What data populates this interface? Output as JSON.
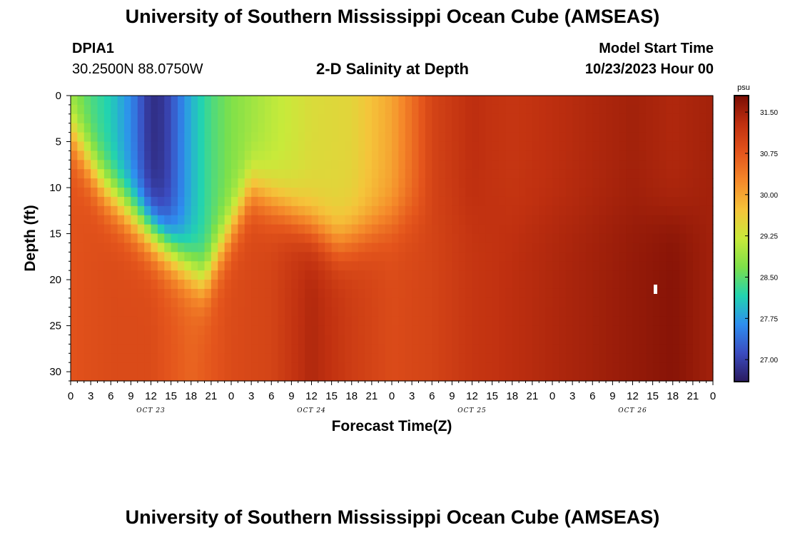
{
  "header": {
    "title": "University of Southern Mississippi Ocean Cube (AMSEAS)",
    "station_id": "DPIA1",
    "station_coords": "30.2500N  88.0750W",
    "subtitle": "2-D Salinity at Depth",
    "start_label": "Model Start Time",
    "start_value": "10/23/2023 Hour 00"
  },
  "footer": {
    "title": "University of Southern Mississippi Ocean Cube (AMSEAS)"
  },
  "chart_data": {
    "type": "heatmap",
    "title": "2-D Salinity at Depth",
    "xlabel": "Forecast Time(Z)",
    "ylabel": "Depth (ft)",
    "x_range_hours": [
      0,
      96
    ],
    "ylim": [
      0,
      31
    ],
    "y_ticks": [
      "0",
      "5",
      "10",
      "15",
      "20",
      "25",
      "30"
    ],
    "x_tick_labels": [
      "0",
      "3",
      "6",
      "9",
      "12",
      "15",
      "18",
      "21",
      "0",
      "3",
      "6",
      "9",
      "12",
      "15",
      "18",
      "21",
      "0",
      "3",
      "6",
      "9",
      "12",
      "15",
      "18",
      "21",
      "0",
      "3",
      "6",
      "9",
      "12",
      "15",
      "18",
      "21",
      "0"
    ],
    "day_labels": [
      "OCT 23",
      "OCT 24",
      "OCT 25",
      "OCT 26"
    ],
    "colorbar": {
      "unit": "psu",
      "min": 26.6,
      "max": 31.8,
      "ticks": [
        "31.50",
        "30.75",
        "30.00",
        "29.25",
        "28.50",
        "27.75",
        "27.00"
      ],
      "colors": [
        "#2a1a5e",
        "#3b4cc0",
        "#2e8ef0",
        "#22d3b0",
        "#7de04a",
        "#c8ea3a",
        "#f5c43a",
        "#f58a2a",
        "#e4551c",
        "#c03010",
        "#7a0d04"
      ]
    },
    "surface_salinity_psu": [
      [
        0,
        28.8
      ],
      [
        3,
        28.4
      ],
      [
        6,
        28.1
      ],
      [
        9,
        27.6
      ],
      [
        12,
        26.8
      ],
      [
        14,
        26.9
      ],
      [
        18,
        27.9
      ],
      [
        21,
        28.4
      ],
      [
        24,
        28.7
      ],
      [
        30,
        29.1
      ],
      [
        36,
        29.4
      ],
      [
        42,
        29.5
      ],
      [
        48,
        30.0
      ],
      [
        54,
        31.0
      ],
      [
        60,
        31.3
      ],
      [
        66,
        31.2
      ],
      [
        72,
        31.3
      ],
      [
        78,
        31.4
      ],
      [
        84,
        31.5
      ],
      [
        90,
        31.4
      ],
      [
        96,
        31.5
      ]
    ],
    "bottom_salinity_psu": [
      [
        0,
        30.8
      ],
      [
        6,
        30.9
      ],
      [
        12,
        30.9
      ],
      [
        18,
        30.6
      ],
      [
        24,
        30.9
      ],
      [
        30,
        31.0
      ],
      [
        36,
        31.4
      ],
      [
        42,
        31.1
      ],
      [
        48,
        30.9
      ],
      [
        54,
        31.0
      ],
      [
        60,
        31.2
      ],
      [
        66,
        31.3
      ],
      [
        72,
        31.4
      ],
      [
        78,
        31.5
      ],
      [
        84,
        31.6
      ],
      [
        90,
        31.7
      ],
      [
        96,
        31.5
      ]
    ]
  }
}
